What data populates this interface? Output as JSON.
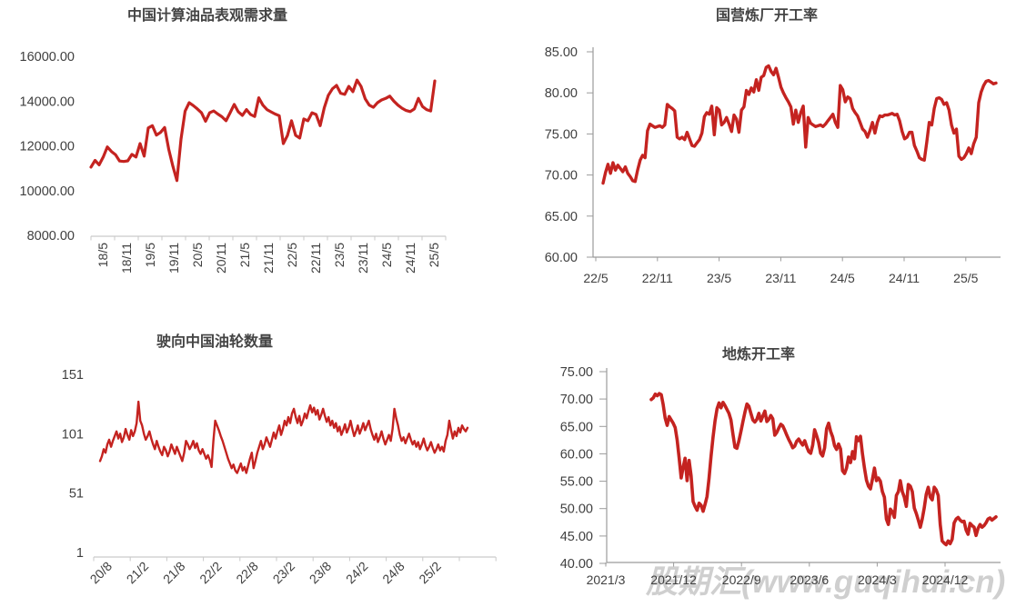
{
  "page": {
    "background": "#ffffff",
    "text_color": "#3f3f3f"
  },
  "watermark": {
    "text": "股期汇(www.guqihui.cn)",
    "color": "#cfcfcf"
  },
  "chart_data": [
    {
      "id": "china-oil-apparent-demand",
      "type": "line",
      "title": "中国计算油品表观需求量",
      "series_color": "#c42320",
      "legend_position": "none",
      "grid": false,
      "ylim": [
        8000,
        16000
      ],
      "yticks": [
        "16000.00",
        "14000.00",
        "12000.00",
        "10000.00",
        "8000.00"
      ],
      "xticks": [
        "18/5",
        "18/11",
        "19/5",
        "19/11",
        "20/5",
        "20/11",
        "21/5",
        "21/11",
        "22/5",
        "22/11",
        "23/5",
        "23/11",
        "24/5",
        "24/11",
        "25/5"
      ],
      "x_label_rotation": 90,
      "values": [
        11050,
        11350,
        11150,
        11500,
        11950,
        11750,
        11600,
        11320,
        11300,
        11330,
        11620,
        11500,
        12100,
        11540,
        12800,
        12900,
        12480,
        12600,
        12820,
        11850,
        11100,
        10450,
        12300,
        13550,
        13930,
        13800,
        13650,
        13480,
        13100,
        13480,
        13560,
        13420,
        13300,
        13120,
        13480,
        13850,
        13520,
        13360,
        13620,
        13400,
        13310,
        14150,
        13820,
        13620,
        13520,
        13420,
        13350,
        12100,
        12460,
        13120,
        12470,
        12350,
        13200,
        13120,
        13480,
        13400,
        12900,
        13700,
        14260,
        14550,
        14700,
        14350,
        14300,
        14660,
        14420,
        14940,
        14650,
        14100,
        13820,
        13720,
        13930,
        14050,
        14120,
        14220,
        14000,
        13820,
        13680,
        13580,
        13530,
        13650,
        14120,
        13760,
        13620,
        13560,
        14900
      ]
    },
    {
      "id": "state-refinery-operating-rate",
      "type": "line",
      "title": "国营炼厂开工率",
      "series_color": "#c42320",
      "legend_position": "none",
      "grid": false,
      "ylim": [
        60,
        85
      ],
      "yticks": [
        "85.00",
        "80.00",
        "75.00",
        "70.00",
        "65.00",
        "60.00"
      ],
      "xticks": [
        "22/5",
        "22/11",
        "23/5",
        "23/11",
        "24/5",
        "24/11",
        "25/5"
      ],
      "x_label_rotation": 0,
      "values": [
        69.0,
        70.3,
        71.3,
        70.2,
        71.5,
        70.6,
        71.2,
        70.8,
        70.4,
        71.0,
        70.2,
        69.8,
        69.3,
        69.2,
        70.6,
        71.8,
        72.4,
        72.1,
        75.4,
        76.2,
        76.0,
        75.8,
        75.9,
        76.0,
        75.8,
        76.1,
        78.6,
        78.3,
        78.1,
        77.8,
        74.6,
        74.4,
        74.6,
        74.3,
        75.2,
        74.4,
        73.6,
        73.5,
        73.9,
        74.3,
        75.1,
        77.1,
        77.6,
        77.4,
        78.4,
        74.9,
        78.2,
        77.9,
        76.1,
        76.4,
        77.0,
        76.2,
        75.3,
        77.3,
        76.8,
        75.2,
        77.9,
        78.3,
        80.3,
        79.8,
        80.6,
        80.1,
        81.6,
        80.3,
        81.9,
        82.1,
        83.1,
        83.3,
        82.6,
        82.2,
        83.0,
        81.9,
        80.7,
        80.0,
        79.4,
        78.9,
        78.3,
        76.2,
        77.9,
        76.4,
        77.6,
        78.4,
        73.4,
        77.0,
        76.3,
        76.1,
        75.9,
        76.0,
        76.1,
        75.9,
        76.2,
        76.6,
        77.0,
        77.4,
        76.4,
        75.8,
        80.9,
        80.4,
        78.9,
        79.5,
        79.3,
        78.1,
        77.6,
        77.2,
        76.4,
        75.6,
        75.3,
        74.6,
        75.4,
        76.4,
        75.1,
        76.4,
        77.2,
        77.1,
        77.3,
        77.3,
        77.4,
        77.5,
        77.3,
        77.4,
        76.6,
        75.3,
        74.4,
        74.6,
        75.2,
        75.2,
        73.6,
        72.9,
        72.1,
        71.9,
        71.8,
        74.0,
        76.4,
        76.1,
        78.1,
        79.3,
        79.4,
        79.2,
        78.6,
        78.8,
        77.9,
        76.1,
        75.1,
        75.6,
        72.3,
        71.9,
        72.1,
        72.6,
        73.3,
        72.6,
        73.8,
        74.6,
        78.8,
        80.1,
        80.9,
        81.4,
        81.5,
        81.3,
        81.1,
        81.2
      ]
    },
    {
      "id": "tankers-heading-to-china",
      "type": "line",
      "title": "驶向中国油轮数量",
      "series_color": "#c42320",
      "legend_position": "none",
      "grid": false,
      "ylim": [
        1,
        151
      ],
      "yticks": [
        "151",
        "101",
        "51",
        "1"
      ],
      "xticks": [
        "20/8",
        "21/2",
        "21/8",
        "22/2",
        "22/8",
        "23/2",
        "23/8",
        "24/2",
        "24/8",
        "25/2"
      ],
      "x_label_rotation": 45,
      "values": [
        78,
        82,
        88,
        85,
        92,
        96,
        90,
        95,
        99,
        103,
        97,
        101,
        94,
        98,
        105,
        100,
        96,
        104,
        99,
        103,
        110,
        128,
        112,
        108,
        101,
        96,
        99,
        103,
        97,
        92,
        88,
        95,
        90,
        86,
        83,
        90,
        87,
        82,
        86,
        92,
        88,
        84,
        90,
        86,
        82,
        78,
        85,
        95,
        92,
        88,
        91,
        95,
        89,
        93,
        87,
        84,
        88,
        84,
        80,
        83,
        79,
        73,
        95,
        112,
        108,
        104,
        99,
        95,
        90,
        85,
        80,
        76,
        72,
        75,
        70,
        68,
        72,
        76,
        70,
        73,
        68,
        74,
        80,
        85,
        72,
        78,
        85,
        90,
        95,
        88,
        92,
        98,
        94,
        90,
        96,
        102,
        97,
        103,
        108,
        100,
        105,
        112,
        108,
        115,
        110,
        118,
        122,
        115,
        110,
        116,
        108,
        112,
        118,
        114,
        120,
        125,
        119,
        123,
        117,
        121,
        113,
        117,
        122,
        116,
        111,
        115,
        108,
        112,
        106,
        110,
        103,
        107,
        100,
        104,
        109,
        102,
        106,
        112,
        105,
        99,
        103,
        108,
        101,
        105,
        110,
        104,
        108,
        112,
        105,
        100,
        96,
        101,
        94,
        98,
        103,
        97,
        92,
        96,
        100,
        95,
        105,
        122,
        114,
        108,
        100,
        95,
        98,
        93,
        97,
        101,
        96,
        92,
        95,
        90,
        94,
        88,
        92,
        97,
        91,
        87,
        90,
        94,
        89,
        85,
        88,
        92,
        87,
        90,
        86,
        95,
        100,
        112,
        104,
        97,
        103,
        99,
        106,
        102,
        108,
        105,
        103,
        106
      ]
    },
    {
      "id": "teapot-refinery-operating-rate",
      "type": "line",
      "title": "地炼开工率",
      "series_color": "#c42320",
      "legend_position": "none",
      "grid": false,
      "ylim": [
        40,
        75
      ],
      "yticks": [
        "75.00",
        "70.00",
        "65.00",
        "60.00",
        "55.00",
        "50.00",
        "45.00",
        "40.00"
      ],
      "xticks": [
        "2021/3",
        "2021/12",
        "2022/9",
        "2023/6",
        "2024/3",
        "2024/12"
      ],
      "x_label_rotation": 0,
      "values": [
        69.9,
        70.2,
        70.9,
        70.6,
        71.0,
        70.8,
        69.0,
        66.5,
        65.2,
        66.8,
        66.2,
        65.6,
        64.8,
        62.5,
        59.2,
        55.6,
        57.6,
        59.2,
        55.1,
        58.8,
        56.0,
        51.3,
        50.4,
        49.7,
        51.0,
        50.6,
        49.5,
        50.8,
        52.2,
        55.5,
        59.5,
        63.0,
        66.0,
        68.2,
        69.3,
        68.4,
        69.4,
        68.8,
        68.1,
        67.4,
        66.2,
        63.6,
        61.2,
        61.0,
        62.4,
        64.1,
        65.9,
        67.6,
        69.1,
        68.7,
        67.4,
        66.2,
        65.8,
        66.3,
        67.4,
        66.0,
        66.9,
        67.8,
        65.9,
        66.3,
        67.0,
        66.4,
        63.4,
        63.9,
        64.7,
        65.4,
        65.1,
        64.3,
        63.4,
        62.6,
        61.9,
        61.1,
        61.4,
        62.3,
        62.7,
        62.1,
        61.6,
        62.4,
        61.3,
        60.4,
        60.1,
        61.6,
        64.4,
        63.3,
        62.1,
        60.1,
        59.6,
        61.1,
        64.6,
        65.6,
        64.1,
        63.1,
        61.5,
        60.8,
        61.8,
        60.9,
        56.9,
        56.4,
        57.4,
        59.4,
        58.4,
        60.4,
        59.1,
        63.1,
        62.4,
        63.2,
        60.0,
        57.4,
        55.2,
        54.1,
        53.6,
        55.4,
        57.4,
        55.1,
        55.6,
        55.0,
        53.1,
        52.1,
        48.1,
        47.1,
        49.9,
        49.4,
        48.4,
        52.4,
        53.1,
        55.1,
        53.1,
        52.1,
        50.4,
        54.4,
        54.1,
        53.1,
        50.1,
        49.1,
        47.9,
        46.6,
        48.1,
        50.1,
        52.6,
        53.9,
        52.1,
        51.6,
        53.9,
        53.4,
        52.4,
        47.1,
        44.1,
        43.7,
        43.4,
        44.1,
        43.6,
        44.4,
        47.4,
        48.1,
        48.4,
        47.9,
        47.6,
        47.7,
        46.1,
        45.3,
        47.3,
        46.9,
        46.6,
        45.1,
        46.4,
        47.1,
        46.6,
        46.9,
        47.4,
        48.1,
        48.3,
        47.9,
        48.2,
        48.5
      ]
    }
  ]
}
